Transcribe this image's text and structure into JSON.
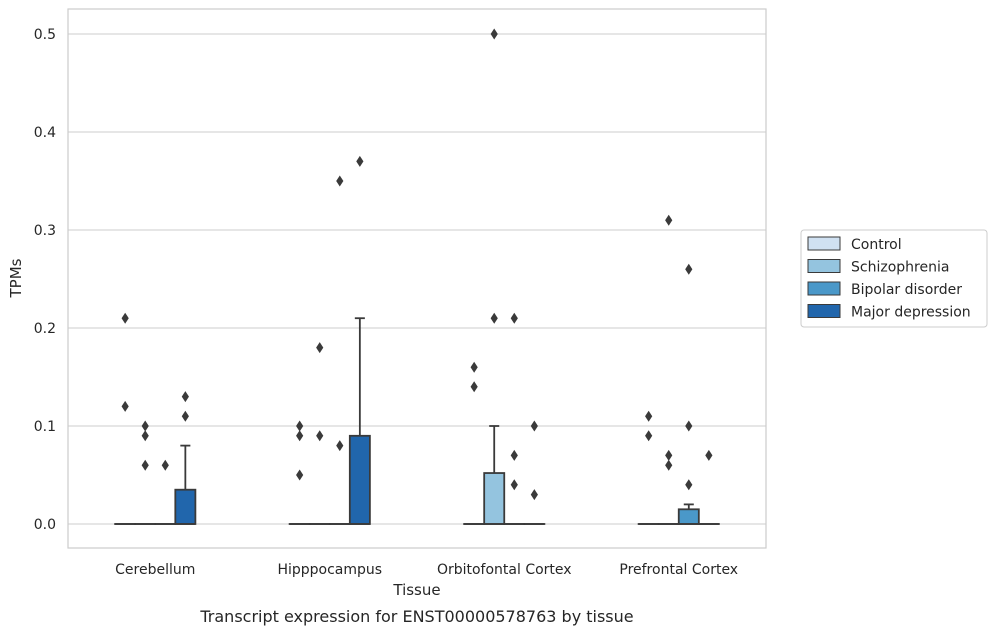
{
  "caption": "Transcript expression for ENST00000578763 by tissue",
  "chart_data": {
    "type": "box",
    "title": "",
    "xlabel": "Tissue",
    "ylabel": "TPMs",
    "ylim": [
      -0.025,
      0.525
    ],
    "yticks": [
      "0.0",
      "0.1",
      "0.2",
      "0.3",
      "0.4",
      "0.5"
    ],
    "grid": "horizontal",
    "legend_position": "right",
    "categories": [
      "Cerebellum",
      "Hipppocampus",
      "Orbitofontal Cortex",
      "Prefrontal Cortex"
    ],
    "series": [
      {
        "name": "Control",
        "color": "#d0e1f2",
        "boxes": [
          {
            "q1": 0,
            "median": 0,
            "q3": 0,
            "whisker_low": 0,
            "whisker_high": 0,
            "outliers": [
              0.21,
              0.12
            ]
          },
          {
            "q1": 0,
            "median": 0,
            "q3": 0,
            "whisker_low": 0,
            "whisker_high": 0,
            "outliers": [
              0.1,
              0.09,
              0.05
            ]
          },
          {
            "q1": 0,
            "median": 0,
            "q3": 0,
            "whisker_low": 0,
            "whisker_high": 0,
            "outliers": [
              0.16,
              0.14
            ]
          },
          {
            "q1": 0,
            "median": 0,
            "q3": 0,
            "whisker_low": 0,
            "whisker_high": 0,
            "outliers": [
              0.11,
              0.09
            ]
          }
        ]
      },
      {
        "name": "Schizophrenia",
        "color": "#94c4df",
        "boxes": [
          {
            "q1": 0,
            "median": 0,
            "q3": 0,
            "whisker_low": 0,
            "whisker_high": 0,
            "outliers": [
              0.1,
              0.09,
              0.06
            ]
          },
          {
            "q1": 0,
            "median": 0,
            "q3": 0,
            "whisker_low": 0,
            "whisker_high": 0,
            "outliers": [
              0.18,
              0.09
            ]
          },
          {
            "q1": 0,
            "median": 0,
            "q3": 0.052,
            "whisker_low": 0,
            "whisker_high": 0.1,
            "outliers": [
              0.5,
              0.21
            ]
          },
          {
            "q1": 0,
            "median": 0,
            "q3": 0,
            "whisker_low": 0,
            "whisker_high": 0,
            "outliers": [
              0.31,
              0.07,
              0.06
            ]
          }
        ]
      },
      {
        "name": "Bipolar disorder",
        "color": "#4a98c9",
        "boxes": [
          {
            "q1": 0,
            "median": 0,
            "q3": 0,
            "whisker_low": 0,
            "whisker_high": 0,
            "outliers": [
              0.06
            ]
          },
          {
            "q1": 0,
            "median": 0,
            "q3": 0,
            "whisker_low": 0,
            "whisker_high": 0,
            "outliers": [
              0.35,
              0.08
            ]
          },
          {
            "q1": 0,
            "median": 0,
            "q3": 0,
            "whisker_low": 0,
            "whisker_high": 0,
            "outliers": [
              0.21,
              0.07,
              0.04
            ]
          },
          {
            "q1": 0,
            "median": 0,
            "q3": 0.015,
            "whisker_low": 0,
            "whisker_high": 0.02,
            "outliers": [
              0.26,
              0.1,
              0.04
            ]
          }
        ]
      },
      {
        "name": "Major depression",
        "color": "#2166ac",
        "boxes": [
          {
            "q1": 0,
            "median": 0,
            "q3": 0.035,
            "whisker_low": 0,
            "whisker_high": 0.08,
            "outliers": [
              0.13,
              0.11
            ]
          },
          {
            "q1": 0,
            "median": 0,
            "q3": 0.09,
            "whisker_low": 0,
            "whisker_high": 0.21,
            "outliers": [
              0.37
            ]
          },
          {
            "q1": 0,
            "median": 0,
            "q3": 0,
            "whisker_low": 0,
            "whisker_high": 0,
            "outliers": [
              0.1,
              0.03
            ]
          },
          {
            "q1": 0,
            "median": 0,
            "q3": 0,
            "whisker_low": 0,
            "whisker_high": 0,
            "outliers": [
              0.07
            ]
          }
        ]
      }
    ]
  }
}
